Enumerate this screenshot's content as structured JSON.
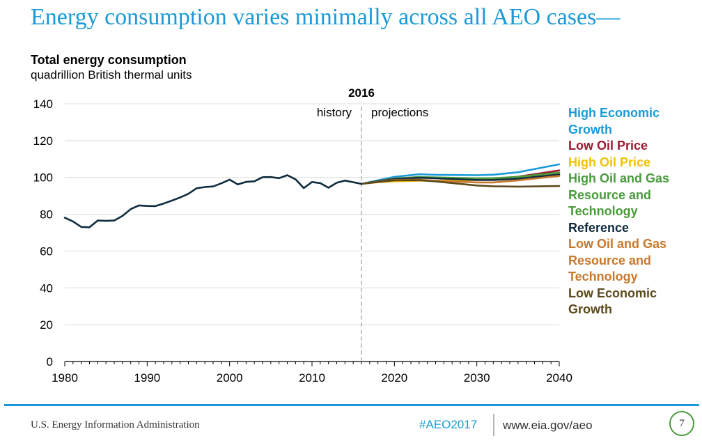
{
  "slide": {
    "title": "Energy consumption varies minimally across all AEO cases—"
  },
  "footer": {
    "agency": "U.S. Energy Information Administration",
    "hashtag": "#AEO2017",
    "url": "www.eia.gov/aeo",
    "page_number": "7",
    "accent_color": "#1a9ad6",
    "page_circle_color": "#4a9a3d"
  },
  "chart_data": {
    "type": "line",
    "title": "Total energy consumption",
    "subtitle": "quadrillion British thermal units",
    "xlim": [
      1980,
      2040
    ],
    "ylim": [
      0,
      140
    ],
    "x_ticks": [
      1980,
      1990,
      2000,
      2010,
      2020,
      2030,
      2040
    ],
    "y_ticks": [
      0,
      20,
      40,
      60,
      80,
      100,
      120,
      140
    ],
    "grid": "horizontal",
    "legend_placement": "right",
    "divider": {
      "year": 2016,
      "label": "2016",
      "left_label": "history",
      "right_label": "projections"
    },
    "history": {
      "color": "#0f2c3f",
      "x": [
        1980,
        1981,
        1982,
        1983,
        1984,
        1985,
        1986,
        1987,
        1988,
        1989,
        1990,
        1991,
        1992,
        1993,
        1994,
        1995,
        1996,
        1997,
        1998,
        1999,
        2000,
        2001,
        2002,
        2003,
        2004,
        2005,
        2006,
        2007,
        2008,
        2009,
        2010,
        2011,
        2012,
        2013,
        2014,
        2015,
        2016
      ],
      "values": [
        78.1,
        76.1,
        73.1,
        72.9,
        76.6,
        76.4,
        76.6,
        79.1,
        82.8,
        84.8,
        84.5,
        84.4,
        85.8,
        87.4,
        89.1,
        91.1,
        94.1,
        94.8,
        95.1,
        96.8,
        98.8,
        96.2,
        97.6,
        97.9,
        100.1,
        100.2,
        99.6,
        101.2,
        99.0,
        94.2,
        97.5,
        96.9,
        94.4,
        97.1,
        98.3,
        97.4,
        96.5
      ]
    },
    "series": [
      {
        "name": "High Economic Growth",
        "color": "#1a9ad6",
        "x": [
          2016,
          2018,
          2020,
          2023,
          2025,
          2030,
          2032,
          2035,
          2040
        ],
        "values": [
          96.5,
          98.4,
          100.3,
          101.7,
          101.4,
          101.2,
          101.5,
          102.8,
          107.1
        ]
      },
      {
        "name": "Low Oil Price",
        "color": "#9b1b30",
        "x": [
          2016,
          2018,
          2020,
          2023,
          2025,
          2030,
          2032,
          2035,
          2040
        ],
        "values": [
          96.5,
          98.0,
          99.4,
          100.2,
          99.8,
          99.0,
          99.2,
          100.4,
          103.8
        ]
      },
      {
        "name": "High Oil Price",
        "color": "#f2c200",
        "x": [
          2016,
          2018,
          2020,
          2023,
          2025,
          2030,
          2032,
          2035,
          2040
        ],
        "values": [
          96.5,
          97.4,
          97.8,
          98.2,
          98.2,
          98.6,
          99.0,
          99.9,
          102.2
        ]
      },
      {
        "name": "High Oil and Gas Resource and Technology",
        "color": "#4a9a3d",
        "x": [
          2016,
          2018,
          2020,
          2023,
          2025,
          2030,
          2032,
          2035,
          2040
        ],
        "values": [
          96.5,
          98.0,
          99.3,
          100.2,
          100.0,
          99.5,
          99.6,
          100.3,
          102.6
        ]
      },
      {
        "name": "Reference",
        "color": "#0f2c3f",
        "x": [
          2016,
          2018,
          2020,
          2023,
          2025,
          2030,
          2032,
          2035,
          2040
        ],
        "values": [
          96.5,
          97.9,
          99.0,
          99.8,
          99.5,
          98.6,
          98.6,
          99.3,
          101.6
        ]
      },
      {
        "name": "Low Oil and Gas Resource and Technology",
        "color": "#c8782d",
        "x": [
          2016,
          2018,
          2020,
          2023,
          2025,
          2030,
          2032,
          2035,
          2040
        ],
        "values": [
          96.5,
          97.6,
          98.6,
          98.8,
          98.2,
          97.3,
          97.3,
          98.4,
          100.8
        ]
      },
      {
        "name": "Low Economic Growth",
        "color": "#5c4a1c",
        "x": [
          2016,
          2018,
          2020,
          2023,
          2025,
          2030,
          2032,
          2035,
          2040
        ],
        "values": [
          96.5,
          97.5,
          98.4,
          98.5,
          97.8,
          95.6,
          95.2,
          95.0,
          95.3
        ]
      }
    ],
    "legend": [
      {
        "label": "High Economic",
        "color": "#1a9ad6"
      },
      {
        "label": "Growth",
        "color": "#1a9ad6"
      },
      {
        "label": "Low Oil Price",
        "color": "#9b1b30"
      },
      {
        "label": "High Oil Price",
        "color": "#f2c200"
      },
      {
        "label": "High Oil and Gas",
        "color": "#4a9a3d"
      },
      {
        "label": "Resource and",
        "color": "#4a9a3d"
      },
      {
        "label": "Technology",
        "color": "#4a9a3d"
      },
      {
        "label": "Reference",
        "color": "#0f2c3f"
      },
      {
        "label": "Low Oil and Gas",
        "color": "#c8782d"
      },
      {
        "label": "Resource and",
        "color": "#c8782d"
      },
      {
        "label": "Technology",
        "color": "#c8782d"
      },
      {
        "label": "Low Economic",
        "color": "#5c4a1c"
      },
      {
        "label": "Growth",
        "color": "#5c4a1c"
      }
    ]
  }
}
